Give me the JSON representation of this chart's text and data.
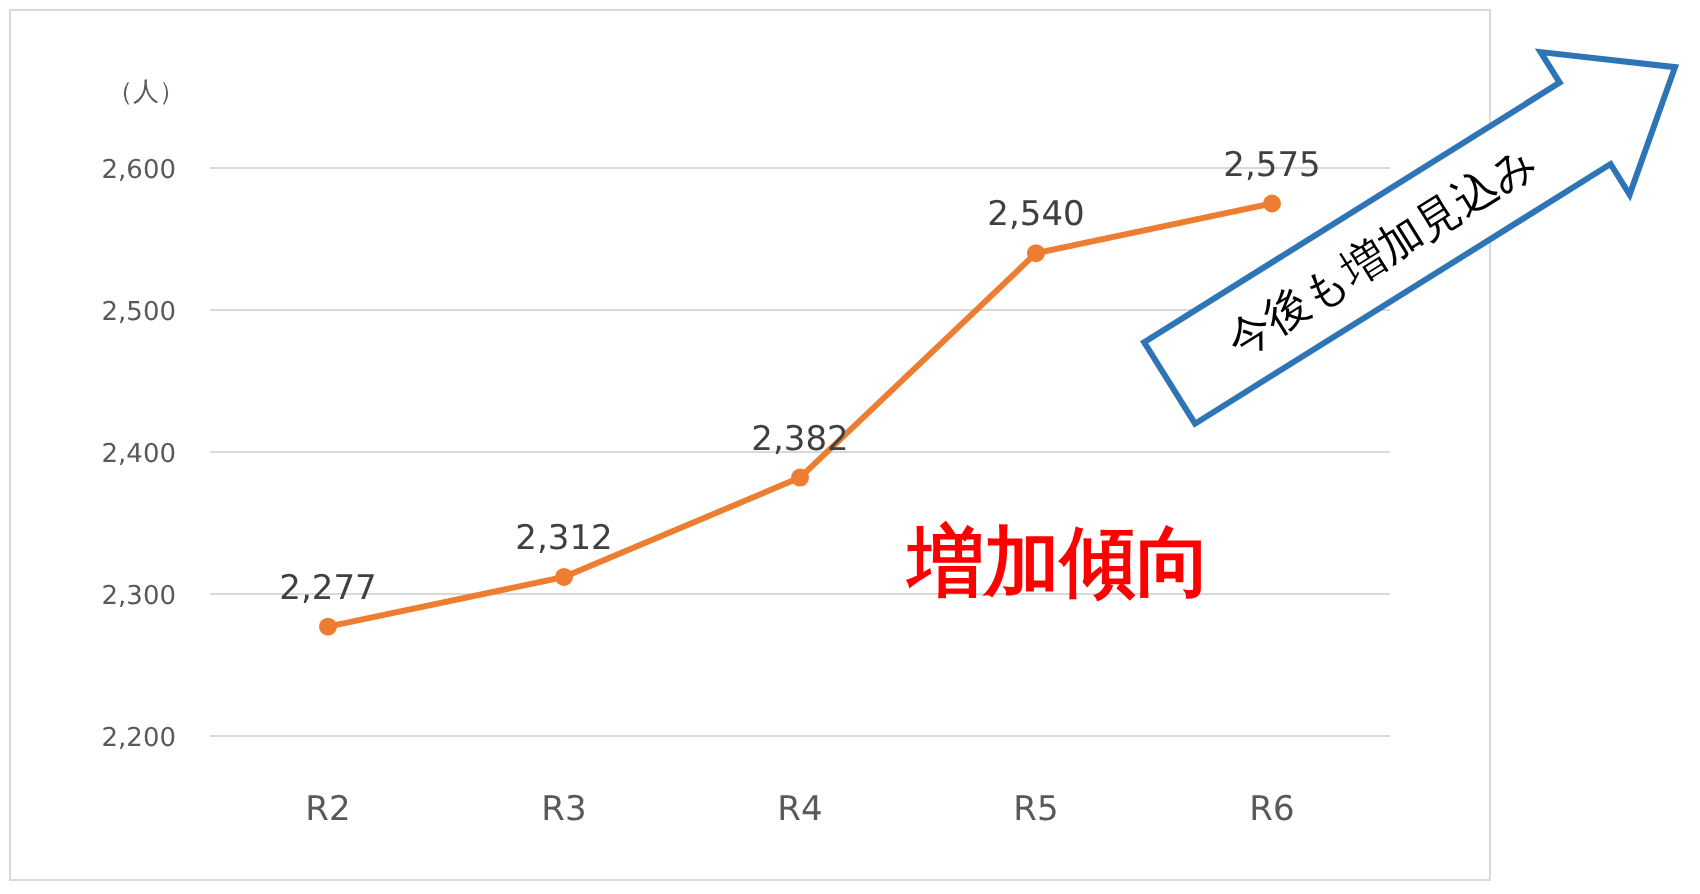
{
  "chart_data": {
    "type": "line",
    "ylabel": "（人）",
    "categories": [
      "R2",
      "R3",
      "R4",
      "R5",
      "R6"
    ],
    "series": [
      {
        "color": "#ed7d31",
        "values": [
          2277,
          2312,
          2382,
          2540,
          2575
        ],
        "value_labels": [
          "2,277",
          "2,312",
          "2,382",
          "2,540",
          "2,575"
        ]
      }
    ],
    "ylim": [
      2200,
      2600
    ],
    "yticks": [
      {
        "value": 2200,
        "label": "2,200"
      },
      {
        "value": 2300,
        "label": "2,300"
      },
      {
        "value": 2400,
        "label": "2,400"
      },
      {
        "value": 2500,
        "label": "2,500"
      },
      {
        "value": 2600,
        "label": "2,600"
      }
    ],
    "grid": "y",
    "marker": "circle",
    "line_style": "solid",
    "annotations": [
      "増加傾向",
      "今後も増加見込み"
    ]
  }
}
